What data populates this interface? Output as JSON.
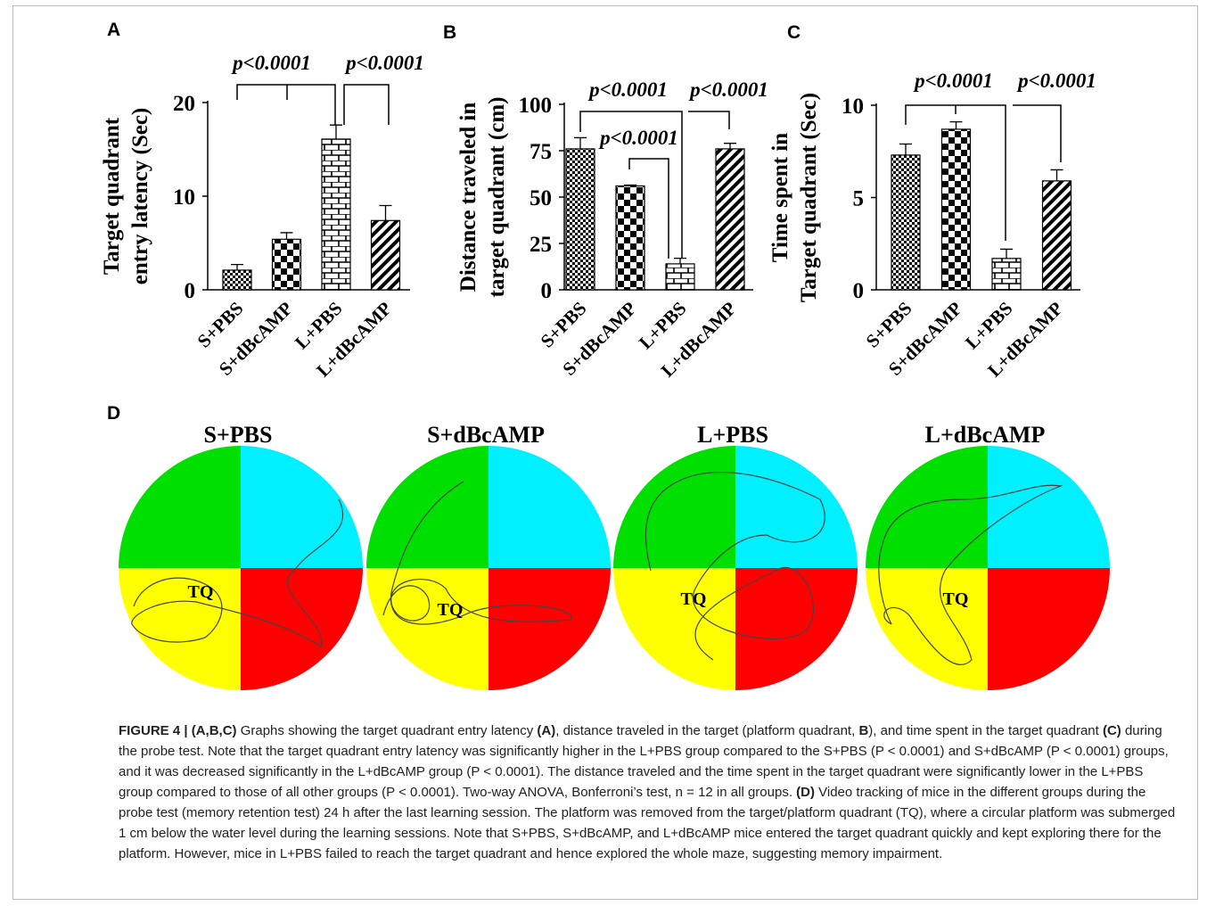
{
  "chart_data": [
    {
      "type": "bar",
      "panel": "A",
      "y_label": [
        "Target quadrant",
        "entry latency (Sec)"
      ],
      "categories": [
        "S+PBS",
        "S+dBcAMP",
        "L+PBS",
        "L+dBcAMP"
      ],
      "values": [
        2.1,
        5.4,
        16.1,
        7.4
      ],
      "errors": [
        0.6,
        0.7,
        1.5,
        1.6
      ],
      "ylim": [
        0,
        20
      ],
      "yticks": [
        0,
        10,
        20
      ],
      "annotations": [
        "p<0.0001",
        "p<0.0001"
      ]
    },
    {
      "type": "bar",
      "panel": "B",
      "y_label": [
        "Distance traveled in",
        "target quadrant (cm)"
      ],
      "categories": [
        "S+PBS",
        "S+dBcAMP",
        "L+PBS",
        "L+dBcAMP"
      ],
      "values": [
        76,
        56,
        14,
        76
      ],
      "errors": [
        6,
        0.5,
        3,
        3
      ],
      "ylim": [
        0,
        100
      ],
      "yticks": [
        0,
        25,
        50,
        75,
        100
      ],
      "annotations": [
        "p<0.0001",
        "p<0.0001",
        "p<0.0001"
      ]
    },
    {
      "type": "bar",
      "panel": "C",
      "y_label": [
        "Time spent in",
        "Target quadrant (Sec)"
      ],
      "categories": [
        "S+PBS",
        "S+dBcAMP",
        "L+PBS",
        "L+dBcAMP"
      ],
      "values": [
        7.3,
        8.7,
        1.7,
        5.9
      ],
      "errors": [
        0.6,
        0.4,
        0.5,
        0.6
      ],
      "ylim": [
        0,
        10
      ],
      "yticks": [
        0,
        5,
        10
      ],
      "annotations": [
        "p<0.0001",
        "p<0.0001"
      ]
    }
  ],
  "panel_d": {
    "label": "D",
    "mazes": [
      {
        "title": "S+PBS",
        "quadrant": "TQ"
      },
      {
        "title": "S+dBcAMP",
        "quadrant": "TQ"
      },
      {
        "title": "L+PBS",
        "quadrant": "TQ"
      },
      {
        "title": "L+dBcAMP",
        "quadrant": "TQ"
      }
    ]
  },
  "caption": {
    "parts": [
      "FIGURE 4 | (A,B,C)",
      " Graphs showing the target quadrant entry latency ",
      "(A)",
      ", distance traveled in the target (platform quadrant, ",
      "B",
      "), and time spent in the target quadrant ",
      "(C)",
      " during the probe test. Note that the target quadrant entry latency was significantly higher in the L+PBS group compared to the S+PBS (P < 0.0001) and S+dBcAMP (P < 0.0001) groups, and it was decreased significantly in the L+dBcAMP group (P < 0.0001). The distance traveled and the time spent in the target quadrant were significantly lower in the L+PBS group compared to those of all other groups (P < 0.0001). Two-way ANOVA, Bonferroni’s test, n = 12 in all groups. ",
      "(D)",
      " Video tracking of mice in the different groups during the probe test (memory retention test) 24 h after the last learning session. The platform was removed from the target/platform quadrant (TQ), where a circular platform was submerged 1 cm below the water level during the learning sessions. Note that S+PBS, S+dBcAMP, and L+dBcAMP mice entered the target quadrant quickly and kept exploring there for the platform. However, mice in L+PBS failed to reach the target quadrant and hence explored the whole maze, suggesting memory impairment."
    ]
  }
}
